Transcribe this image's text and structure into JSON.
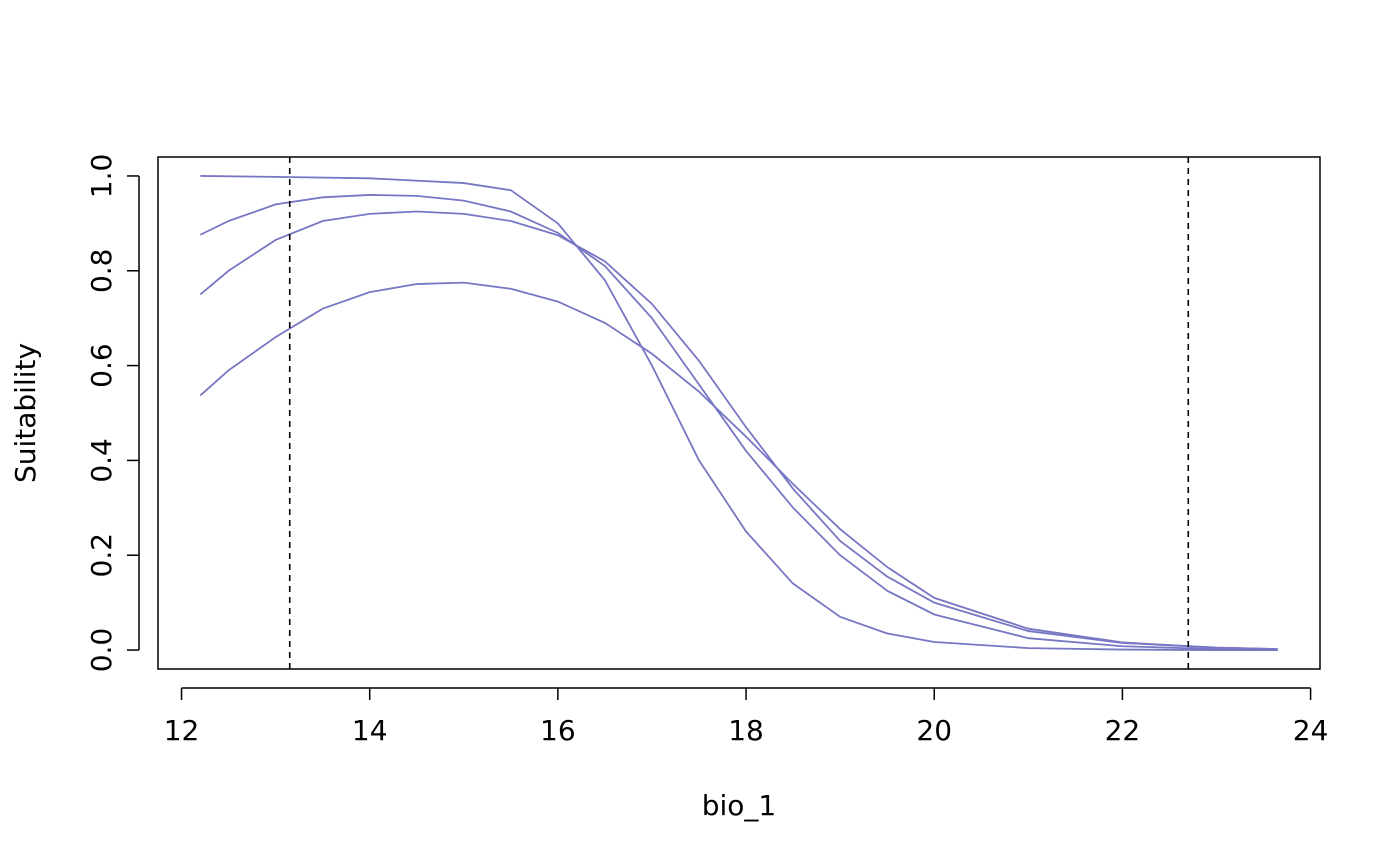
{
  "chart_data": {
    "type": "line",
    "title": "",
    "xlabel": "bio_1",
    "ylabel": "Suitability",
    "xlim": [
      11.75,
      24.1
    ],
    "ylim": [
      -0.04,
      1.04
    ],
    "xticks": [
      12,
      14,
      16,
      18,
      20,
      22,
      24
    ],
    "yticks": [
      0.0,
      0.2,
      0.4,
      0.6,
      0.8,
      1.0
    ],
    "xtick_labels": [
      "12",
      "14",
      "16",
      "18",
      "20",
      "22",
      "24"
    ],
    "ytick_labels": [
      "0.0",
      "0.2",
      "0.4",
      "0.6",
      "0.8",
      "1.0"
    ],
    "grid": false,
    "line_color": "#7777c4",
    "reference_lines": [
      {
        "x": 13.15,
        "style": "dashed",
        "color": "#000000"
      },
      {
        "x": 22.7,
        "style": "dashed",
        "color": "#000000"
      }
    ],
    "series": [
      {
        "x": [
          12.2,
          13,
          14,
          15,
          15.5,
          16,
          16.5,
          17,
          17.5,
          18,
          18.5,
          19,
          19.5,
          20,
          21,
          22,
          23,
          23.65
        ],
        "values": [
          1.0,
          0.998,
          0.995,
          0.985,
          0.97,
          0.9,
          0.78,
          0.6,
          0.4,
          0.25,
          0.14,
          0.07,
          0.035,
          0.017,
          0.004,
          0.001,
          0.0,
          0.0
        ]
      },
      {
        "x": [
          12.2,
          12.5,
          13,
          13.5,
          14,
          14.5,
          15,
          15.5,
          16,
          16.5,
          17,
          17.5,
          18,
          18.5,
          19,
          19.5,
          20,
          21,
          22,
          23,
          23.65
        ],
        "values": [
          0.876,
          0.905,
          0.94,
          0.955,
          0.96,
          0.958,
          0.948,
          0.925,
          0.88,
          0.81,
          0.7,
          0.56,
          0.42,
          0.3,
          0.2,
          0.125,
          0.075,
          0.025,
          0.008,
          0.002,
          0.001
        ]
      },
      {
        "x": [
          12.2,
          12.5,
          13,
          13.5,
          14,
          14.5,
          15,
          15.5,
          16,
          16.5,
          17,
          17.5,
          18,
          18.5,
          19,
          19.5,
          20,
          21,
          22,
          23,
          23.65
        ],
        "values": [
          0.75,
          0.8,
          0.865,
          0.905,
          0.92,
          0.925,
          0.92,
          0.905,
          0.875,
          0.82,
          0.73,
          0.61,
          0.47,
          0.34,
          0.23,
          0.155,
          0.1,
          0.04,
          0.015,
          0.005,
          0.002
        ]
      },
      {
        "x": [
          12.2,
          12.5,
          13,
          13.5,
          14,
          14.5,
          15,
          15.5,
          16,
          16.5,
          17,
          17.5,
          18,
          18.5,
          19,
          19.5,
          20,
          21,
          22,
          23,
          23.65
        ],
        "values": [
          0.537,
          0.59,
          0.66,
          0.72,
          0.755,
          0.772,
          0.775,
          0.762,
          0.735,
          0.69,
          0.625,
          0.545,
          0.45,
          0.35,
          0.255,
          0.175,
          0.11,
          0.045,
          0.016,
          0.005,
          0.002
        ]
      }
    ]
  }
}
